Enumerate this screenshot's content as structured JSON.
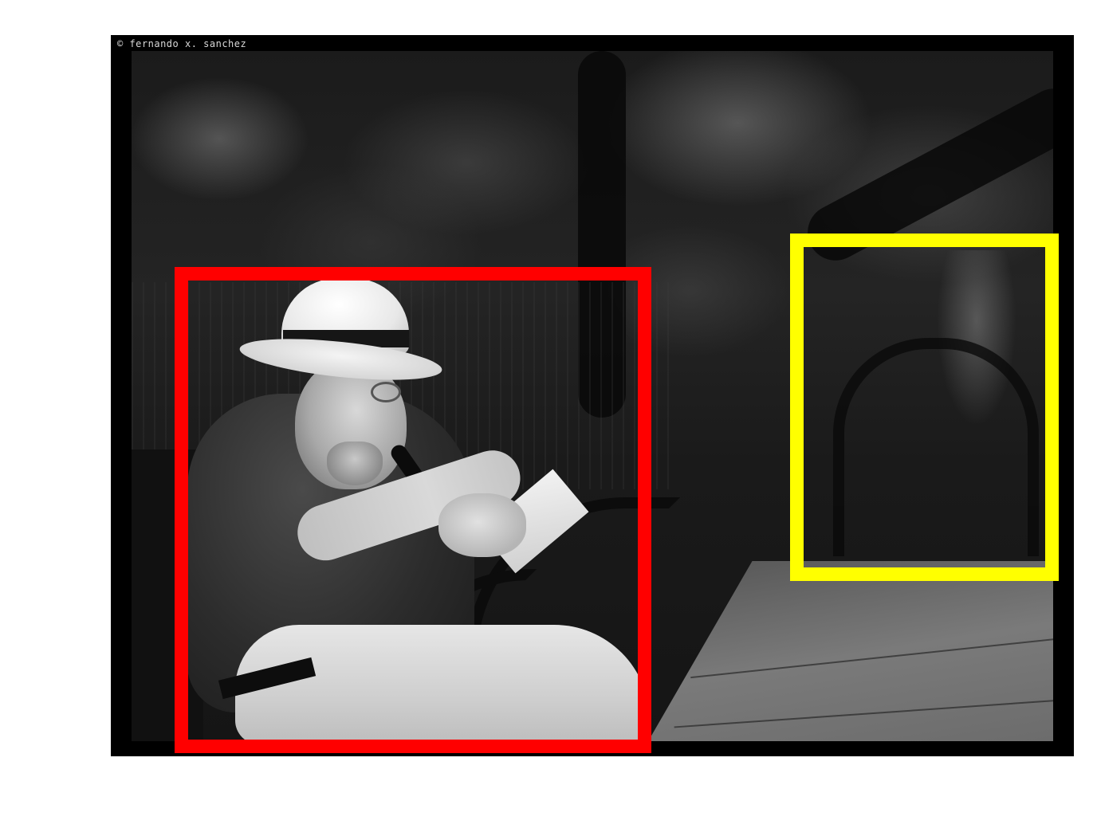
{
  "photo": {
    "watermark": "© fernando x. sanchez"
  },
  "annotations": [
    {
      "label": "red box",
      "color": "#ff0000"
    },
    {
      "label": "yellow box",
      "color": "#ffff00"
    }
  ],
  "colors": {
    "frame": "#000000",
    "background": "#ffffff"
  }
}
